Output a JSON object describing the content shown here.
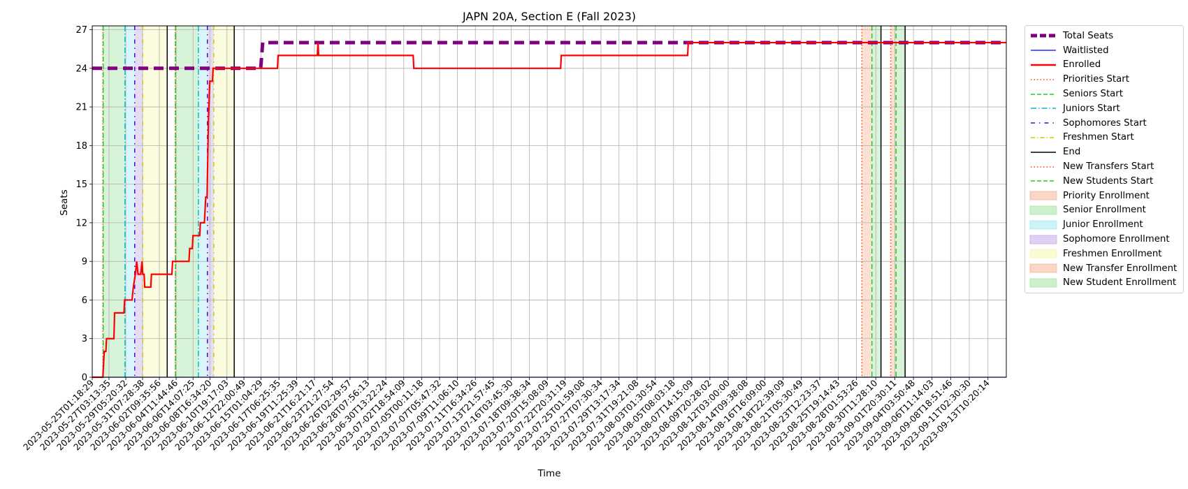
{
  "chart_data": {
    "type": "line",
    "title": "JAPN 20A, Section E (Fall 2023)",
    "xlabel": "Time",
    "ylabel": "Seats",
    "x_range": [
      "2023-05-25T01:18:29",
      "2023-09-15T17:00:00"
    ],
    "ylim": [
      0,
      27.3
    ],
    "yticks": [
      0,
      3,
      6,
      9,
      12,
      15,
      18,
      21,
      24,
      27
    ],
    "xticks": [
      "2023-05-25T01:18:29",
      "2023-05-27T03:13:35",
      "2023-05-29T05:20:32",
      "2023-05-31T07:28:38",
      "2023-06-02T09:35:56",
      "2023-06-04T11:44:46",
      "2023-06-06T14:07:25",
      "2023-06-08T16:34:20",
      "2023-06-10T19:17:03",
      "2023-06-12T22:00:49",
      "2023-06-15T01:04:29",
      "2023-06-17T06:25:35",
      "2023-06-19T11:25:39",
      "2023-06-21T16:21:17",
      "2023-06-23T21:27:54",
      "2023-06-26T02:29:57",
      "2023-06-28T07:56:13",
      "2023-06-30T13:22:24",
      "2023-07-02T18:54:09",
      "2023-07-05T00:11:18",
      "2023-07-07T05:47:32",
      "2023-07-09T11:06:10",
      "2023-07-11T16:34:26",
      "2023-07-13T21:57:45",
      "2023-07-16T03:45:30",
      "2023-07-18T09:38:34",
      "2023-07-20T15:08:09",
      "2023-07-22T20:31:19",
      "2023-07-25T01:59:08",
      "2023-07-27T07:30:34",
      "2023-07-29T13:17:34",
      "2023-07-31T19:21:08",
      "2023-08-03T01:30:54",
      "2023-08-05T08:03:18",
      "2023-08-07T14:15:09",
      "2023-08-09T20:28:02",
      "2023-08-12T03:00:00",
      "2023-08-14T09:38:08",
      "2023-08-16T16:09:00",
      "2023-08-18T22:39:09",
      "2023-08-21T05:30:49",
      "2023-08-23T12:23:37",
      "2023-08-25T19:14:43",
      "2023-08-28T01:53:26",
      "2023-08-30T11:28:10",
      "2023-09-01T20:30:11",
      "2023-09-04T03:50:48",
      "2023-09-06T11:14:03",
      "2023-09-08T18:51:46",
      "2023-09-11T02:30:30",
      "2023-09-13T10:20:14"
    ],
    "grid": true,
    "legend_position": "outside-right",
    "series": [
      {
        "name": "Total Seats",
        "color": "#800080",
        "style": "dashed-thick",
        "points": [
          [
            "2023-05-25T01:18:29",
            24
          ],
          [
            "2023-06-15T00:00:00",
            24
          ],
          [
            "2023-06-15T06:00:00",
            26
          ],
          [
            "2023-09-15T17:00:00",
            26
          ]
        ]
      },
      {
        "name": "Waitlisted",
        "color": "#0000ff",
        "style": "solid",
        "points": [
          [
            "2023-05-25T01:18:29",
            0
          ],
          [
            "2023-09-15T17:00:00",
            0
          ]
        ]
      },
      {
        "name": "Enrolled",
        "color": "#ff0000",
        "style": "solid-thick",
        "points": [
          [
            "2023-05-25T01:18:29",
            0
          ],
          [
            "2023-05-26T09:00:00",
            0
          ],
          [
            "2023-05-26T13:00:00",
            2
          ],
          [
            "2023-05-26T18:00:00",
            2
          ],
          [
            "2023-05-26T20:00:00",
            3
          ],
          [
            "2023-05-27T18:00:00",
            3
          ],
          [
            "2023-05-27T20:00:00",
            5
          ],
          [
            "2023-05-29T00:00:00",
            5
          ],
          [
            "2023-05-29T02:00:00",
            6
          ],
          [
            "2023-05-30T00:00:00",
            6
          ],
          [
            "2023-05-30T04:00:00",
            7
          ],
          [
            "2023-05-30T10:00:00",
            8
          ],
          [
            "2023-05-30T14:00:00",
            9
          ],
          [
            "2023-05-30T18:00:00",
            8
          ],
          [
            "2023-05-31T02:00:00",
            8
          ],
          [
            "2023-05-31T06:00:00",
            9
          ],
          [
            "2023-05-31T08:00:00",
            8
          ],
          [
            "2023-05-31T12:00:00",
            8
          ],
          [
            "2023-05-31T14:00:00",
            7
          ],
          [
            "2023-06-01T08:00:00",
            7
          ],
          [
            "2023-06-01T10:00:00",
            8
          ],
          [
            "2023-06-03T23:00:00",
            8
          ],
          [
            "2023-06-04T01:00:00",
            9
          ],
          [
            "2023-06-06T02:00:00",
            9
          ],
          [
            "2023-06-06T04:00:00",
            10
          ],
          [
            "2023-06-06T12:00:00",
            10
          ],
          [
            "2023-06-06T14:00:00",
            11
          ],
          [
            "2023-06-07T10:00:00",
            11
          ],
          [
            "2023-06-07T12:00:00",
            12
          ],
          [
            "2023-06-08T00:00:00",
            12
          ],
          [
            "2023-06-08T04:00:00",
            14
          ],
          [
            "2023-06-08T08:00:00",
            14
          ],
          [
            "2023-06-08T12:00:00",
            20
          ],
          [
            "2023-06-08T16:00:00",
            23
          ],
          [
            "2023-06-09T00:00:00",
            23
          ],
          [
            "2023-06-09T02:00:00",
            24
          ],
          [
            "2023-06-17T02:00:00",
            24
          ],
          [
            "2023-06-17T04:00:00",
            25
          ],
          [
            "2023-06-22T01:00:00",
            25
          ],
          [
            "2023-06-22T03:00:00",
            26
          ],
          [
            "2023-06-22T05:00:00",
            25
          ],
          [
            "2023-07-03T23:00:00",
            25
          ],
          [
            "2023-07-04T01:00:00",
            24
          ],
          [
            "2023-07-22T07:00:00",
            24
          ],
          [
            "2023-07-22T09:00:00",
            25
          ],
          [
            "2023-08-07T02:00:00",
            25
          ],
          [
            "2023-08-07T04:00:00",
            26
          ],
          [
            "2023-09-15T17:00:00",
            26
          ]
        ]
      }
    ],
    "phase_lines": [
      {
        "name": "Priorities Start",
        "color": "#ff4500",
        "style": "dotted",
        "dates": [
          "2023-05-26T09:00:00",
          "2023-06-04T09:00:00",
          "2023-08-28T18:00:00"
        ]
      },
      {
        "name": "Seniors Start",
        "color": "#22cc22",
        "style": "dashed",
        "dates": [
          "2023-05-26T10:00:00",
          "2023-06-04T10:00:00",
          "2023-08-30T00:00:00"
        ]
      },
      {
        "name": "Juniors Start",
        "color": "#00bcd4",
        "style": "dashdot",
        "dates": [
          "2023-05-29T03:00:00",
          "2023-06-07T06:00:00"
        ]
      },
      {
        "name": "Sophomores Start",
        "color": "#5a00c8",
        "style": "dashdot-loose",
        "dates": [
          "2023-05-30T08:00:00",
          "2023-06-08T09:00:00"
        ]
      },
      {
        "name": "Freshmen Start",
        "color": "#d4c800",
        "style": "dashdot-loose",
        "dates": [
          "2023-05-31T08:00:00",
          "2023-06-09T04:00:00"
        ]
      },
      {
        "name": "End",
        "color": "#000000",
        "style": "solid",
        "dates": [
          "2023-06-03T09:00:00",
          "2023-06-11T17:00:00",
          "2023-08-31T03:00:00",
          "2023-09-03T03:00:00"
        ]
      },
      {
        "name": "New Transfers Start",
        "color": "#ff4500",
        "style": "dotted",
        "dates": [
          "2023-09-01T08:00:00"
        ]
      },
      {
        "name": "New Students Start",
        "color": "#22cc22",
        "style": "dashed",
        "dates": [
          "2023-09-02T00:00:00"
        ]
      }
    ],
    "phase_spans": [
      {
        "name": "Priority Enrollment",
        "color": "#f4a582",
        "ranges": [
          [
            "2023-05-26T09:00:00",
            "2023-05-26T10:00:00"
          ],
          [
            "2023-06-04T09:00:00",
            "2023-06-04T10:00:00"
          ],
          [
            "2023-08-28T18:00:00",
            "2023-08-30T00:00:00"
          ]
        ]
      },
      {
        "name": "Senior Enrollment",
        "color": "#90e090",
        "ranges": [
          [
            "2023-05-26T10:00:00",
            "2023-05-29T03:00:00"
          ],
          [
            "2023-06-04T10:00:00",
            "2023-06-07T06:00:00"
          ],
          [
            "2023-08-30T00:00:00",
            "2023-08-31T03:00:00"
          ]
        ]
      },
      {
        "name": "Junior Enrollment",
        "color": "#8fe6ee",
        "ranges": [
          [
            "2023-05-29T03:00:00",
            "2023-05-30T08:00:00"
          ],
          [
            "2023-06-07T06:00:00",
            "2023-06-08T09:00:00"
          ]
        ]
      },
      {
        "name": "Sophomore Enrollment",
        "color": "#b59ae6",
        "ranges": [
          [
            "2023-05-30T08:00:00",
            "2023-05-31T08:00:00"
          ],
          [
            "2023-06-08T09:00:00",
            "2023-06-09T04:00:00"
          ]
        ]
      },
      {
        "name": "Freshmen Enrollment",
        "color": "#f3f3a0",
        "ranges": [
          [
            "2023-05-31T08:00:00",
            "2023-06-03T09:00:00"
          ],
          [
            "2023-06-09T04:00:00",
            "2023-06-11T17:00:00"
          ]
        ]
      },
      {
        "name": "New Transfer Enrollment",
        "color": "#f4a582",
        "ranges": [
          [
            "2023-09-01T08:00:00",
            "2023-09-02T00:00:00"
          ]
        ]
      },
      {
        "name": "New Student Enrollment",
        "color": "#90e090",
        "ranges": [
          [
            "2023-09-02T00:00:00",
            "2023-09-03T03:00:00"
          ]
        ]
      }
    ]
  },
  "legend": {
    "items": [
      {
        "label": "Total Seats",
        "kind": "line",
        "color": "#800080",
        "dash": "9,4",
        "width": 5
      },
      {
        "label": "Waitlisted",
        "kind": "line",
        "color": "#0000ff",
        "dash": "",
        "width": 1.3
      },
      {
        "label": "Enrolled",
        "kind": "line",
        "color": "#ff0000",
        "dash": "",
        "width": 2.4
      },
      {
        "label": "Priorities Start",
        "kind": "line",
        "color": "#ff4500",
        "dash": "1.5,3",
        "width": 1.5
      },
      {
        "label": "Seniors Start",
        "kind": "line",
        "color": "#22cc22",
        "dash": "6,3",
        "width": 1.5
      },
      {
        "label": "Juniors Start",
        "kind": "line",
        "color": "#00bcd4",
        "dash": "8,3,1.5,3",
        "width": 1.5
      },
      {
        "label": "Sophomores Start",
        "kind": "line",
        "color": "#5a00c8",
        "dash": "6,6,1.5,6",
        "width": 1.5
      },
      {
        "label": "Freshmen Start",
        "kind": "line",
        "color": "#d4c800",
        "dash": "6,3,1.5,3",
        "width": 1.5
      },
      {
        "label": "End",
        "kind": "line",
        "color": "#000000",
        "dash": "",
        "width": 1.5
      },
      {
        "label": "New Transfers Start",
        "kind": "line",
        "color": "#ff4500",
        "dash": "1.5,3",
        "width": 1.5
      },
      {
        "label": "New Students Start",
        "kind": "line",
        "color": "#22cc22",
        "dash": "6,3",
        "width": 1.5
      },
      {
        "label": "Priority Enrollment",
        "kind": "patch",
        "color": "#f4a582"
      },
      {
        "label": "Senior Enrollment",
        "kind": "patch",
        "color": "#90e090"
      },
      {
        "label": "Junior Enrollment",
        "kind": "patch",
        "color": "#8fe6ee"
      },
      {
        "label": "Sophomore Enrollment",
        "kind": "patch",
        "color": "#b59ae6"
      },
      {
        "label": "Freshmen Enrollment",
        "kind": "patch",
        "color": "#f3f3a0"
      },
      {
        "label": "New Transfer Enrollment",
        "kind": "patch",
        "color": "#f4a582"
      },
      {
        "label": "New Student Enrollment",
        "kind": "patch",
        "color": "#90e090"
      }
    ]
  }
}
